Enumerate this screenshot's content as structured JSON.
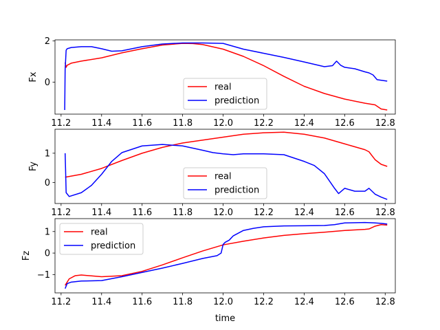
{
  "colors": {
    "real": "#ff0000",
    "prediction": "#0000ff"
  },
  "chart_data": [
    {
      "type": "line",
      "ylabel": "Fx",
      "xlabel": "",
      "xlim": [
        11.17,
        12.85
      ],
      "ylim": [
        -1.55,
        2.05
      ],
      "xticks": [
        11.2,
        11.4,
        11.6,
        11.8,
        12.0,
        12.2,
        12.4,
        12.6,
        12.8
      ],
      "xtick_labels": [
        "11.2",
        "11.4",
        "11.6",
        "11.8",
        "12.0",
        "12.2",
        "12.4",
        "12.6",
        "12.8"
      ],
      "yticks": [
        0,
        2
      ],
      "ytick_labels": [
        "0",
        "2"
      ],
      "legend_position": "lower center",
      "series": [
        {
          "name": "real",
          "color": "#ff0000",
          "x": [
            11.22,
            11.225,
            11.23,
            11.25,
            11.3,
            11.4,
            11.5,
            11.6,
            11.7,
            11.8,
            11.85,
            11.9,
            12.0,
            12.1,
            12.2,
            12.3,
            12.4,
            12.5,
            12.6,
            12.7,
            12.75,
            12.78,
            12.81
          ],
          "y": [
            0.95,
            0.72,
            0.82,
            0.92,
            1.02,
            1.18,
            1.42,
            1.62,
            1.8,
            1.88,
            1.87,
            1.82,
            1.6,
            1.25,
            0.8,
            0.28,
            -0.2,
            -0.55,
            -0.82,
            -1.02,
            -1.1,
            -1.3,
            -1.35
          ]
        },
        {
          "name": "prediction",
          "color": "#0000ff",
          "x": [
            11.218,
            11.22,
            11.225,
            11.23,
            11.25,
            11.3,
            11.35,
            11.4,
            11.45,
            11.5,
            11.6,
            11.7,
            11.8,
            11.9,
            12.0,
            12.1,
            12.2,
            12.3,
            12.4,
            12.5,
            12.54,
            12.56,
            12.58,
            12.6,
            12.65,
            12.7,
            12.72,
            12.74,
            12.76,
            12.81
          ],
          "y": [
            -1.35,
            0.6,
            1.55,
            1.62,
            1.68,
            1.72,
            1.72,
            1.62,
            1.5,
            1.52,
            1.72,
            1.85,
            1.9,
            1.9,
            1.88,
            1.6,
            1.4,
            1.2,
            0.98,
            0.75,
            0.8,
            1.02,
            0.82,
            0.72,
            0.65,
            0.5,
            0.45,
            0.35,
            0.12,
            0.05
          ]
        }
      ]
    },
    {
      "type": "line",
      "ylabel": "Fy",
      "xlabel": "",
      "xlim": [
        11.17,
        12.85
      ],
      "ylim": [
        -0.72,
        1.82
      ],
      "xticks": [
        11.2,
        11.4,
        11.6,
        11.8,
        12.0,
        12.2,
        12.4,
        12.6,
        12.8
      ],
      "xtick_labels": [
        "11.2",
        "11.4",
        "11.6",
        "11.8",
        "12.0",
        "12.2",
        "12.4",
        "12.6",
        "12.8"
      ],
      "yticks": [
        0,
        1
      ],
      "ytick_labels": [
        "0",
        "1"
      ],
      "legend_position": "lower center",
      "series": [
        {
          "name": "real",
          "color": "#ff0000",
          "x": [
            11.22,
            11.3,
            11.4,
            11.5,
            11.6,
            11.7,
            11.8,
            11.9,
            12.0,
            12.1,
            12.2,
            12.3,
            12.4,
            12.5,
            12.6,
            12.7,
            12.72,
            12.75,
            12.78,
            12.81
          ],
          "y": [
            0.18,
            0.28,
            0.48,
            0.75,
            1.0,
            1.2,
            1.35,
            1.45,
            1.55,
            1.65,
            1.7,
            1.72,
            1.65,
            1.52,
            1.32,
            1.12,
            1.05,
            0.78,
            0.62,
            0.55
          ]
        },
        {
          "name": "prediction",
          "color": "#0000ff",
          "x": [
            11.22,
            11.222,
            11.225,
            11.24,
            11.3,
            11.35,
            11.4,
            11.45,
            11.5,
            11.6,
            11.7,
            11.8,
            11.9,
            11.95,
            12.0,
            12.05,
            12.1,
            12.2,
            12.3,
            12.4,
            12.45,
            12.5,
            12.55,
            12.57,
            12.6,
            12.65,
            12.7,
            12.72,
            12.75,
            12.78,
            12.81
          ],
          "y": [
            1.0,
            0.5,
            -0.35,
            -0.48,
            -0.35,
            -0.1,
            0.28,
            0.72,
            1.02,
            1.25,
            1.3,
            1.25,
            1.1,
            1.02,
            0.98,
            0.95,
            0.98,
            0.98,
            0.95,
            0.72,
            0.58,
            0.3,
            -0.2,
            -0.38,
            -0.2,
            -0.3,
            -0.3,
            -0.2,
            -0.4,
            -0.5,
            -0.58
          ]
        }
      ]
    },
    {
      "type": "line",
      "ylabel": "Fz",
      "xlabel": "time",
      "xlim": [
        11.17,
        12.85
      ],
      "ylim": [
        -1.85,
        1.6
      ],
      "xticks": [
        11.2,
        11.4,
        11.6,
        11.8,
        12.0,
        12.2,
        12.4,
        12.6,
        12.8
      ],
      "xtick_labels": [
        "11.2",
        "11.4",
        "11.6",
        "11.8",
        "12.0",
        "12.2",
        "12.4",
        "12.6",
        "12.8"
      ],
      "yticks": [
        -1,
        0,
        1
      ],
      "ytick_labels": [
        "−1",
        "0",
        "1"
      ],
      "legend_position": "upper left",
      "series": [
        {
          "name": "real",
          "color": "#ff0000",
          "x": [
            11.22,
            11.24,
            11.27,
            11.3,
            11.35,
            11.4,
            11.5,
            11.6,
            11.7,
            11.8,
            11.9,
            12.0,
            12.1,
            12.2,
            12.3,
            12.4,
            12.5,
            12.6,
            12.7,
            12.72,
            12.75,
            12.78,
            12.81
          ],
          "y": [
            -1.5,
            -1.2,
            -1.05,
            -1.02,
            -1.06,
            -1.1,
            -1.05,
            -0.85,
            -0.55,
            -0.22,
            0.1,
            0.38,
            0.55,
            0.7,
            0.82,
            0.9,
            0.97,
            1.05,
            1.1,
            1.12,
            1.25,
            1.32,
            1.3
          ]
        },
        {
          "name": "prediction",
          "color": "#0000ff",
          "x": [
            11.22,
            11.23,
            11.25,
            11.3,
            11.4,
            11.5,
            11.6,
            11.7,
            11.8,
            11.9,
            11.97,
            11.99,
            12.0,
            12.01,
            12.03,
            12.05,
            12.1,
            12.15,
            12.2,
            12.3,
            12.4,
            12.5,
            12.55,
            12.6,
            12.7,
            12.75,
            12.78,
            12.81
          ],
          "y": [
            -1.65,
            -1.42,
            -1.35,
            -1.3,
            -1.28,
            -1.1,
            -0.9,
            -0.7,
            -0.48,
            -0.25,
            -0.12,
            0.0,
            0.4,
            0.5,
            0.6,
            0.8,
            1.05,
            1.15,
            1.22,
            1.26,
            1.27,
            1.28,
            1.32,
            1.4,
            1.42,
            1.4,
            1.38,
            1.35
          ]
        }
      ]
    }
  ]
}
